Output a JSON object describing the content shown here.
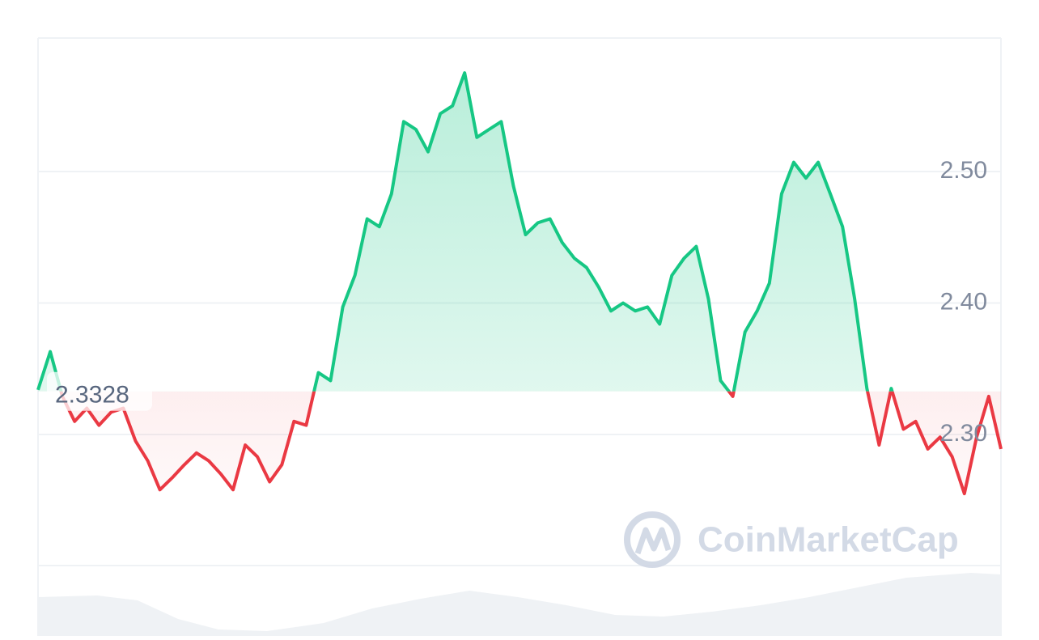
{
  "chart_data": {
    "type": "line",
    "baseline": 2.3328,
    "watermark": "CoinMarketCap",
    "up_color": "#16c784",
    "down_color": "#ea3943",
    "ylim": [
      2.2,
      2.6
    ],
    "yticks": [
      {
        "value": 2.3,
        "label": "2.30"
      },
      {
        "value": 2.4,
        "label": "2.40"
      },
      {
        "value": 2.5,
        "label": "2.50"
      }
    ],
    "grid": true,
    "values": [
      2.334,
      2.363,
      2.329,
      2.31,
      2.32,
      2.307,
      2.317,
      2.32,
      2.295,
      2.28,
      2.258,
      2.267,
      2.277,
      2.286,
      2.28,
      2.27,
      2.258,
      2.292,
      2.283,
      2.264,
      2.277,
      2.31,
      2.307,
      2.347,
      2.341,
      2.397,
      2.421,
      2.464,
      2.458,
      2.483,
      2.538,
      2.532,
      2.515,
      2.544,
      2.55,
      2.575,
      2.526,
      2.532,
      2.538,
      2.489,
      2.452,
      2.461,
      2.464,
      2.446,
      2.434,
      2.427,
      2.412,
      2.394,
      2.4,
      2.394,
      2.397,
      2.384,
      2.421,
      2.434,
      2.443,
      2.403,
      2.341,
      2.329,
      2.378,
      2.394,
      2.415,
      2.483,
      2.507,
      2.495,
      2.507,
      2.483,
      2.458,
      2.403,
      2.335,
      2.292,
      2.335,
      2.304,
      2.31,
      2.289,
      2.298,
      2.283,
      2.255,
      2.298,
      2.329,
      2.289
    ]
  }
}
